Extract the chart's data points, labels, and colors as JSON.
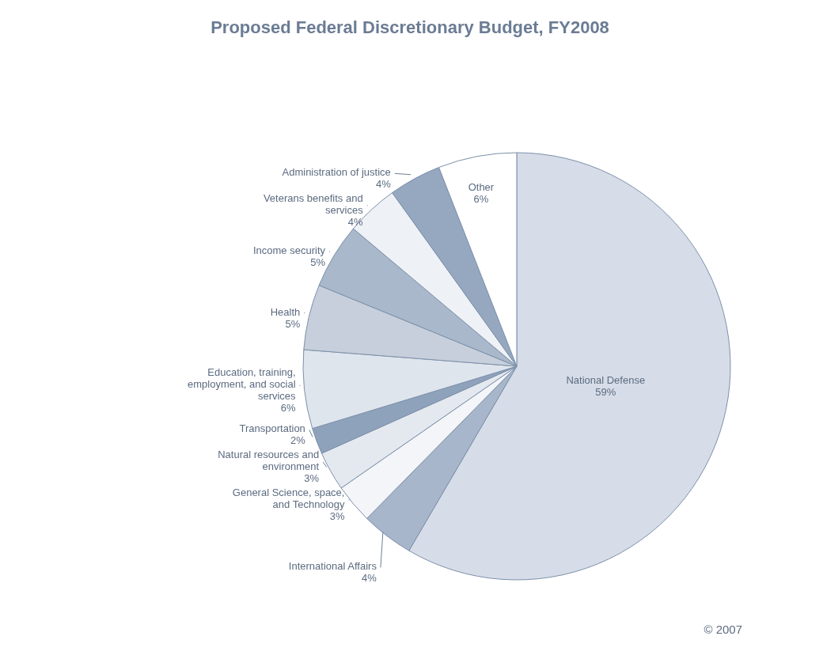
{
  "chart_data": {
    "type": "pie",
    "title": "Proposed Federal Discretionary Budget, FY2008",
    "categories": [
      "National Defense",
      "International Affairs",
      "General Science, space, and Technology",
      "Natural resources and environment",
      "Transportation",
      "Education, training, employment, and social services",
      "Health",
      "Income security",
      "Veterans benefits and services",
      "Administration of justice",
      "Other"
    ],
    "values": [
      59,
      4,
      3,
      3,
      2,
      6,
      5,
      5,
      4,
      4,
      6
    ],
    "value_labels": [
      "59%",
      "4%",
      "3%",
      "3%",
      "2%",
      "6%",
      "5%",
      "5%",
      "4%",
      "4%",
      "6%"
    ],
    "colors": [
      "#d6dde8",
      "#a7b6ca",
      "#f3f5f8",
      "#e4e9f0",
      "#8fa2bb",
      "#dfe5ed",
      "#c6cfdb",
      "#a9b8cb",
      "#eef1f5",
      "#95a8c0",
      "#ffffff"
    ],
    "annotations": [
      "© 2007"
    ]
  }
}
